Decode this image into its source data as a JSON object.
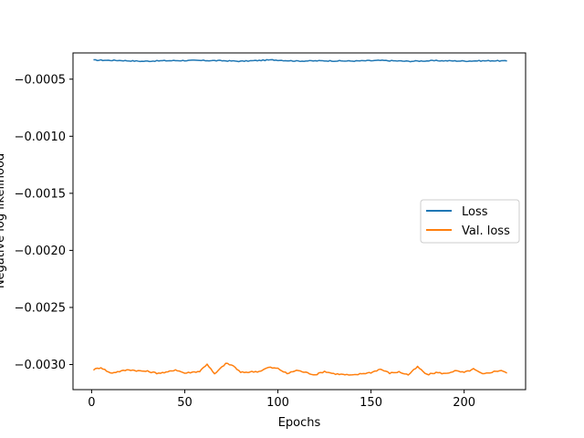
{
  "chart_data": {
    "type": "line",
    "title": "",
    "xlabel": "Epochs",
    "ylabel": "Negative log likelihood",
    "xlim": [
      -10,
      233
    ],
    "ylim": [
      -0.00322,
      -0.00027
    ],
    "xticks": [
      0,
      50,
      100,
      150,
      200
    ],
    "xtick_labels": [
      "0",
      "50",
      "100",
      "150",
      "200"
    ],
    "yticks": [
      -0.0005,
      -0.001,
      -0.0015,
      -0.002,
      -0.0025,
      -0.003
    ],
    "ytick_labels": [
      "−0.0005",
      "−0.0010",
      "−0.0015",
      "−0.0020",
      "−0.0025",
      "−0.0030"
    ],
    "grid": false,
    "legend_position": "center right",
    "x_range": [
      1,
      223
    ],
    "series": [
      {
        "name": "Loss",
        "color": "#1f77b4",
        "mean": -0.000335,
        "points": [
          [
            1,
            -0.000333
          ],
          [
            15,
            -0.000336
          ],
          [
            27,
            -0.000343
          ],
          [
            40,
            -0.000338
          ],
          [
            55,
            -0.000336
          ],
          [
            70,
            -0.000338
          ],
          [
            80,
            -0.000343
          ],
          [
            97,
            -0.000331
          ],
          [
            110,
            -0.000341
          ],
          [
            125,
            -0.000339
          ],
          [
            140,
            -0.000341
          ],
          [
            155,
            -0.000336
          ],
          [
            170,
            -0.000343
          ],
          [
            185,
            -0.000338
          ],
          [
            200,
            -0.000341
          ],
          [
            215,
            -0.000338
          ],
          [
            223,
            -0.000341
          ]
        ]
      },
      {
        "name": "Val. loss",
        "color": "#ff7f0e",
        "mean": -0.00306,
        "points": [
          [
            1,
            -0.003045
          ],
          [
            5,
            -0.003025
          ],
          [
            10,
            -0.003075
          ],
          [
            15,
            -0.00306
          ],
          [
            20,
            -0.003045
          ],
          [
            25,
            -0.003055
          ],
          [
            30,
            -0.00306
          ],
          [
            35,
            -0.003075
          ],
          [
            40,
            -0.00307
          ],
          [
            45,
            -0.003045
          ],
          [
            50,
            -0.003075
          ],
          [
            55,
            -0.003065
          ],
          [
            58,
            -0.00306
          ],
          [
            62,
            -0.002995
          ],
          [
            66,
            -0.003085
          ],
          [
            72,
            -0.00299
          ],
          [
            76,
            -0.00301
          ],
          [
            80,
            -0.00307
          ],
          [
            90,
            -0.00306
          ],
          [
            95,
            -0.003025
          ],
          [
            100,
            -0.003035
          ],
          [
            105,
            -0.00308
          ],
          [
            110,
            -0.00305
          ],
          [
            115,
            -0.00307
          ],
          [
            120,
            -0.00309
          ],
          [
            125,
            -0.00306
          ],
          [
            130,
            -0.00308
          ],
          [
            140,
            -0.003095
          ],
          [
            145,
            -0.00308
          ],
          [
            150,
            -0.00307
          ],
          [
            155,
            -0.00304
          ],
          [
            160,
            -0.003075
          ],
          [
            165,
            -0.003065
          ],
          [
            170,
            -0.00309
          ],
          [
            175,
            -0.00302
          ],
          [
            180,
            -0.00309
          ],
          [
            185,
            -0.00307
          ],
          [
            190,
            -0.00308
          ],
          [
            195,
            -0.003055
          ],
          [
            200,
            -0.00307
          ],
          [
            205,
            -0.00304
          ],
          [
            210,
            -0.003085
          ],
          [
            215,
            -0.003065
          ],
          [
            220,
            -0.00305
          ],
          [
            223,
            -0.003075
          ]
        ]
      }
    ]
  }
}
